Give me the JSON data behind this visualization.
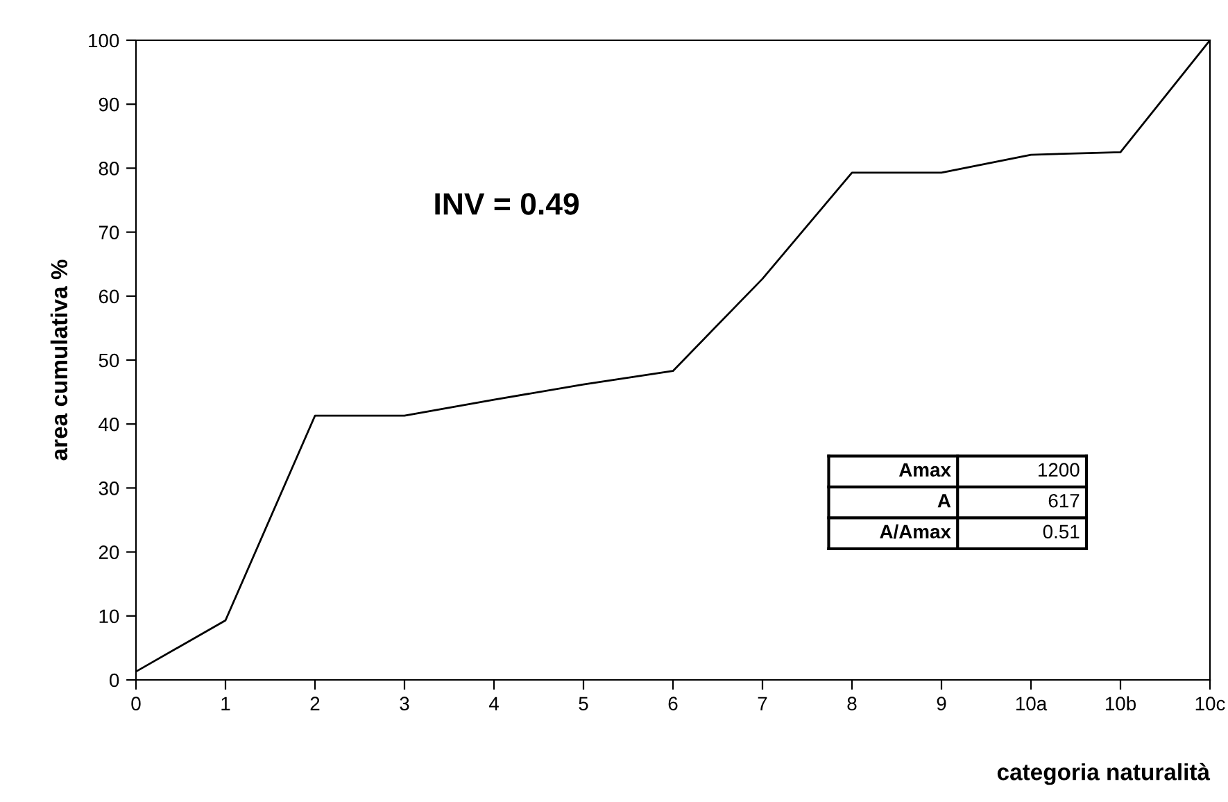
{
  "chart_data": {
    "type": "line",
    "xlabel": "categoria naturalità",
    "ylabel": "area cumulativa %",
    "categories": [
      "0",
      "1",
      "2",
      "3",
      "4",
      "5",
      "6",
      "7",
      "8",
      "9",
      "10a",
      "10b",
      "10c"
    ],
    "series": [
      {
        "color": "#000000",
        "values": [
          1.3,
          9.3,
          41.3,
          41.3,
          43.8,
          46.2,
          48.3,
          62.7,
          79.3,
          79.3,
          82.1,
          82.5,
          100
        ]
      }
    ],
    "ylim": [
      0,
      100
    ],
    "yticks": [
      0,
      10,
      20,
      30,
      40,
      50,
      60,
      70,
      80,
      90,
      100
    ],
    "grid": false,
    "legend": false,
    "marker": "none",
    "line_style": "solid",
    "annotations": [
      "INV = 0.49",
      "Amax",
      "1200",
      "A",
      "617",
      "A/Amax",
      "0.51"
    ]
  }
}
